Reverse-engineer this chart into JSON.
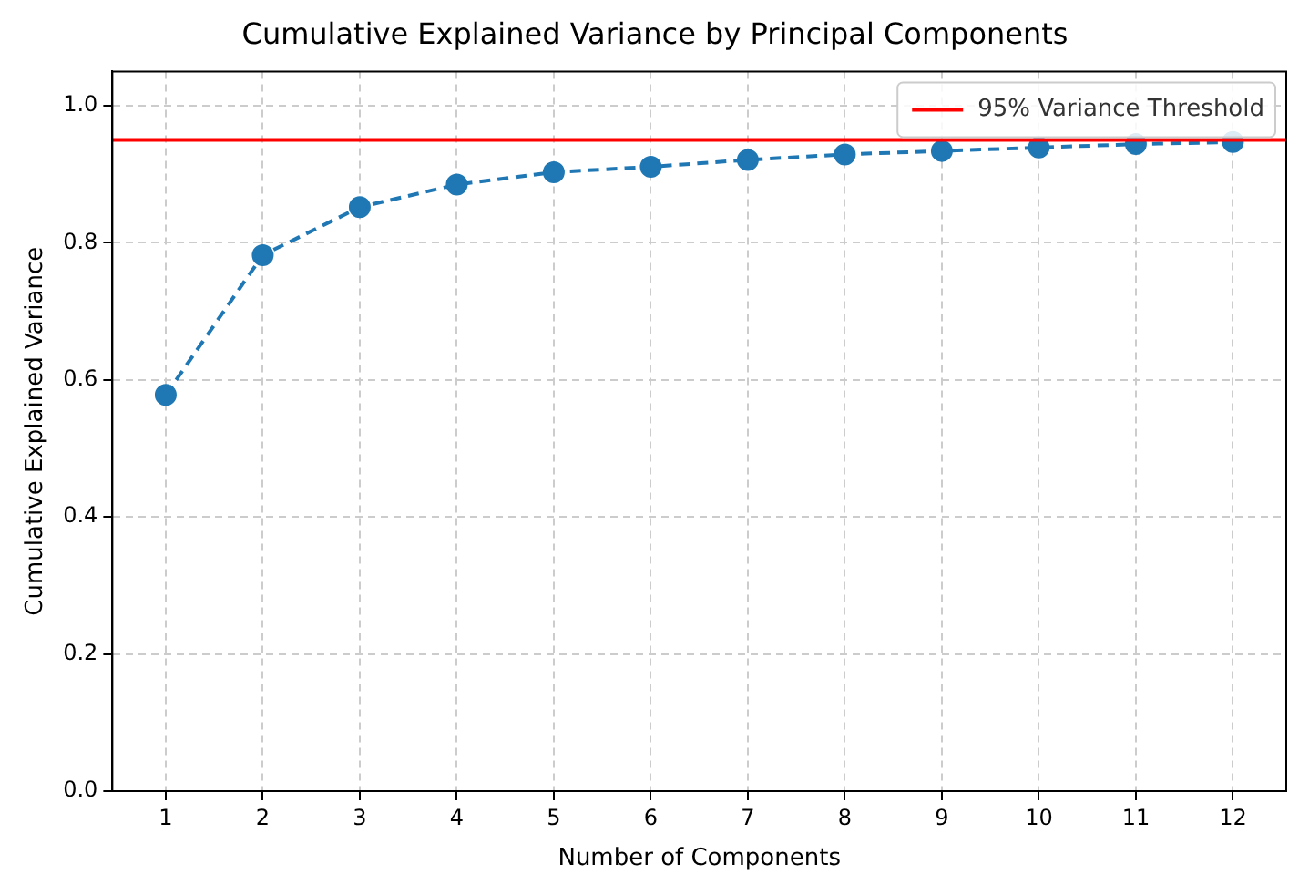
{
  "chart_data": {
    "type": "line",
    "title": "Cumulative Explained Variance by Principal Components",
    "xlabel": "Number of Components",
    "ylabel": "Cumulative Explained Variance",
    "x": [
      1,
      2,
      3,
      4,
      5,
      6,
      7,
      8,
      9,
      10,
      11,
      12
    ],
    "series": [
      {
        "color": "#1f77b4",
        "values": [
          0.578,
          0.782,
          0.852,
          0.885,
          0.903,
          0.911,
          0.921,
          0.929,
          0.934,
          0.939,
          0.944,
          0.947
        ]
      }
    ],
    "xlim": [
      0.45,
      12.55
    ],
    "xticks": [
      1,
      2,
      3,
      4,
      5,
      6,
      7,
      8,
      9,
      10,
      11,
      12
    ],
    "ylim": [
      0,
      1.05
    ],
    "yticks": [
      {
        "value": 0,
        "label": "0.0"
      },
      {
        "value": 0.2,
        "label": "0.2"
      },
      {
        "value": 0.4,
        "label": "0.4"
      },
      {
        "value": 0.6,
        "label": "0.6"
      },
      {
        "value": 0.8,
        "label": "0.8"
      },
      {
        "value": 1,
        "label": "1.0"
      }
    ],
    "ref_lines": [
      {
        "axis": "y",
        "value": 0.95,
        "label": "95% Variance Threshold",
        "color": "#ff0000"
      }
    ],
    "grid": true,
    "legend": "top right",
    "marker": "circle",
    "line_style": "dashed"
  }
}
